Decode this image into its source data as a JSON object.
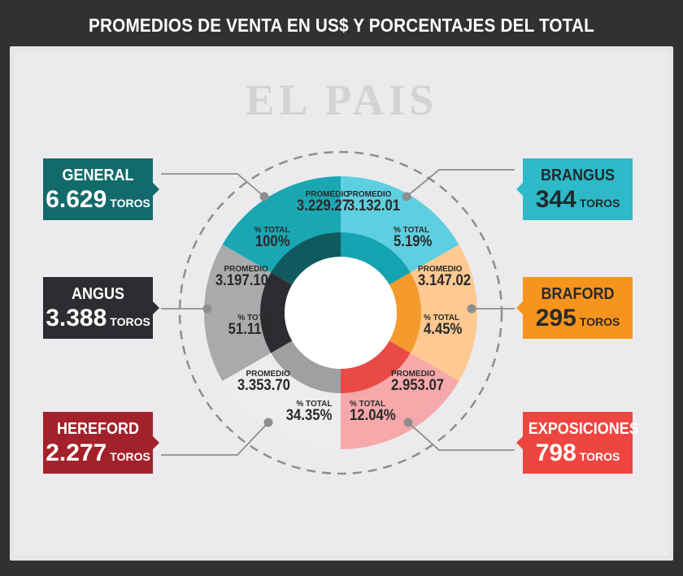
{
  "header": {
    "title": "PROMEDIOS DE VENTA EN US$ Y PORCENTAJES DEL TOTAL"
  },
  "brand": {
    "text": "EL PAIS"
  },
  "labels": {
    "promedio": "PROMEDIO",
    "total": "% TOTAL",
    "unit": "TOROS"
  },
  "chart_data": {
    "type": "pie",
    "variant": "donut",
    "title": "PROMEDIOS DE VENTA EN US$ Y PORCENTAJES DEL TOTAL",
    "categories": [
      "GENERAL",
      "BRANGUS",
      "BRAFORD",
      "EXPOSICIONES",
      "HEREFORD",
      "ANGUS"
    ],
    "series": [
      {
        "name": "TOROS",
        "values": [
          6629,
          344,
          295,
          798,
          2277,
          3388
        ]
      }
    ],
    "segments": [
      {
        "name": "GENERAL",
        "toros": "6.629",
        "promedio": "3.229.27",
        "total": "100%",
        "color": "#1aa7b3",
        "box_color": "#126a6b"
      },
      {
        "name": "BRANGUS",
        "toros": "344",
        "promedio": "3.132.01",
        "total": "5.19%",
        "color": "#5ecfe0",
        "box_color": "#2eb9c8"
      },
      {
        "name": "BRAFORD",
        "toros": "295",
        "promedio": "3.147.02",
        "total": "4.45%",
        "color": "#ffc991",
        "box_color": "#f7941e"
      },
      {
        "name": "EXPOSICIONES",
        "toros": "798",
        "promedio": "2.953.07",
        "total": "12.04%",
        "color": "#f7a8aa",
        "box_color": "#ef4540"
      },
      {
        "name": "HEREFORD",
        "toros": "2.277",
        "promedio": "3.353.70",
        "total": "34.35%",
        "color": "#ecedee",
        "box_color": "#a3212a"
      },
      {
        "name": "ANGUS",
        "toros": "3.388",
        "promedio": "3.197.10",
        "total": "51.11%",
        "color": "#a9aaac",
        "box_color": "#2c2d30"
      }
    ]
  }
}
